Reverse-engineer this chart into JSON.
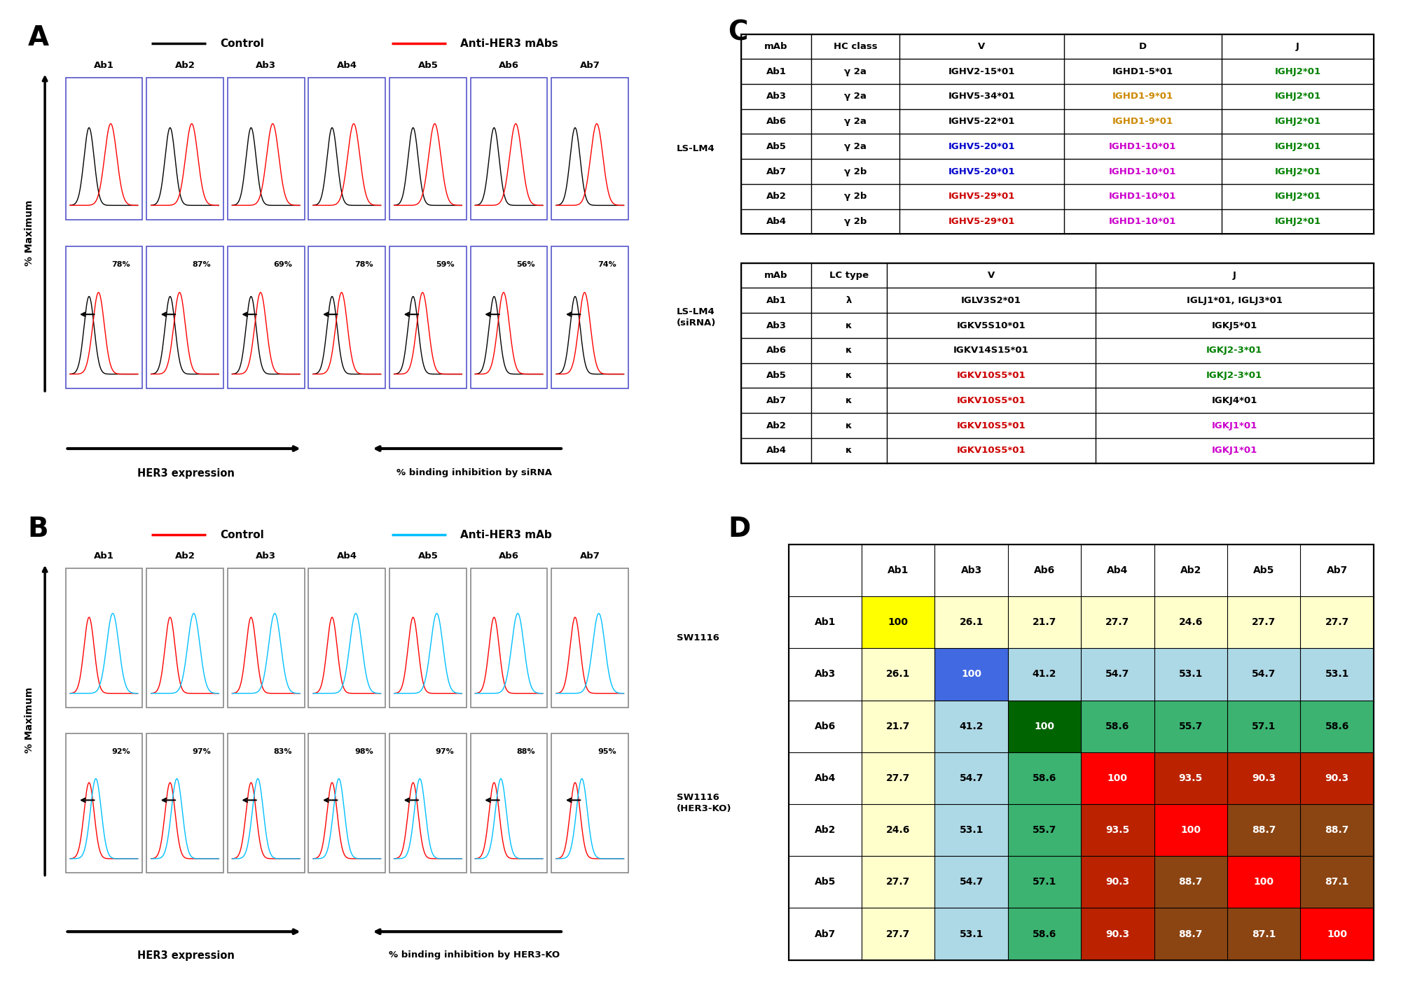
{
  "panel_A_label": "A",
  "panel_B_label": "B",
  "panel_C_label": "C",
  "panel_D_label": "D",
  "ab_labels": [
    "Ab1",
    "Ab2",
    "Ab3",
    "Ab4",
    "Ab5",
    "Ab6",
    "Ab7"
  ],
  "siRNA_pcts": [
    "78%",
    "87%",
    "69%",
    "78%",
    "59%",
    "56%",
    "74%"
  ],
  "KO_pcts": [
    "92%",
    "97%",
    "83%",
    "98%",
    "97%",
    "88%",
    "95%"
  ],
  "panel_A_row1_label": "LS-LM4",
  "panel_A_row2_label": "LS-LM4\n(siRNA)",
  "panel_B_row1_label": "SW1116",
  "panel_B_row2_label": "SW1116\n(HER3-KO)",
  "legend_A_control_color": "black",
  "legend_A_sample_color": "red",
  "legend_B_control_color": "red",
  "legend_B_sample_color": "#00bfff",
  "HC_table_headers": [
    "mAb",
    "HC class",
    "V",
    "D",
    "J"
  ],
  "HC_table_rows": [
    [
      "Ab1",
      "γ 2a",
      "IGHV2-15*01",
      "IGHD1-5*01",
      "IGHJ2*01"
    ],
    [
      "Ab3",
      "γ 2a",
      "IGHV5-34*01",
      "IGHD1-9*01",
      "IGHJ2*01"
    ],
    [
      "Ab6",
      "γ 2a",
      "IGHV5-22*01",
      "IGHD1-9*01",
      "IGHJ2*01"
    ],
    [
      "Ab5",
      "γ 2a",
      "IGHV5-20*01",
      "IGHD1-10*01",
      "IGHJ2*01"
    ],
    [
      "Ab7",
      "γ 2b",
      "IGHV5-20*01",
      "IGHD1-10*01",
      "IGHJ2*01"
    ],
    [
      "Ab2",
      "γ 2b",
      "IGHV5-29*01",
      "IGHD1-10*01",
      "IGHJ2*01"
    ],
    [
      "Ab4",
      "γ 2b",
      "IGHV5-29*01",
      "IGHD1-10*01",
      "IGHJ2*01"
    ]
  ],
  "HC_table_colors": [
    [
      "black",
      "black",
      "black",
      "black",
      "#008000"
    ],
    [
      "black",
      "black",
      "black",
      "#cc8800",
      "#008000"
    ],
    [
      "black",
      "black",
      "black",
      "#cc8800",
      "#008000"
    ],
    [
      "black",
      "black",
      "#0000cc",
      "#cc00cc",
      "#008000"
    ],
    [
      "black",
      "black",
      "#0000cc",
      "#cc00cc",
      "#008000"
    ],
    [
      "black",
      "black",
      "#cc0000",
      "#cc00cc",
      "#008000"
    ],
    [
      "black",
      "black",
      "#cc0000",
      "#cc00cc",
      "#008000"
    ]
  ],
  "LC_table_headers": [
    "mAb",
    "LC type",
    "V",
    "J"
  ],
  "LC_table_rows": [
    [
      "Ab1",
      "λ",
      "IGLV3S2*01",
      "IGLJ1*01, IGLJ3*01"
    ],
    [
      "Ab3",
      "κ",
      "IGKV5S10*01",
      "IGKJ5*01"
    ],
    [
      "Ab6",
      "κ",
      "IGKV14S15*01",
      "IGKJ2-3*01"
    ],
    [
      "Ab5",
      "κ",
      "IGKV10S5*01",
      "IGKJ2-3*01"
    ],
    [
      "Ab7",
      "κ",
      "IGKV10S5*01",
      "IGKJ4*01"
    ],
    [
      "Ab2",
      "κ",
      "IGKV10S5*01",
      "IGKJ1*01"
    ],
    [
      "Ab4",
      "κ",
      "IGKV10S5*01",
      "IGKJ1*01"
    ]
  ],
  "LC_table_colors": [
    [
      "black",
      "black",
      "black",
      "black"
    ],
    [
      "black",
      "black",
      "black",
      "black"
    ],
    [
      "black",
      "black",
      "black",
      "#008000"
    ],
    [
      "black",
      "black",
      "#cc0000",
      "#008000"
    ],
    [
      "black",
      "black",
      "#cc0000",
      "black"
    ],
    [
      "black",
      "black",
      "#cc0000",
      "#cc00cc"
    ],
    [
      "black",
      "black",
      "#cc0000",
      "#cc00cc"
    ]
  ],
  "D_rows": [
    "Ab1",
    "Ab3",
    "Ab6",
    "Ab4",
    "Ab2",
    "Ab5",
    "Ab7"
  ],
  "D_cols": [
    "Ab1",
    "Ab3",
    "Ab6",
    "Ab4",
    "Ab2",
    "Ab5",
    "Ab7"
  ],
  "D_values": [
    [
      100,
      26.1,
      21.7,
      27.7,
      24.6,
      27.7,
      27.7
    ],
    [
      26.1,
      100,
      41.2,
      54.7,
      53.1,
      54.7,
      53.1
    ],
    [
      21.7,
      41.2,
      100,
      58.6,
      55.7,
      57.1,
      58.6
    ],
    [
      27.7,
      54.7,
      58.6,
      100,
      93.5,
      90.3,
      90.3
    ],
    [
      24.6,
      53.1,
      55.7,
      93.5,
      100,
      88.7,
      88.7
    ],
    [
      27.7,
      54.7,
      57.1,
      90.3,
      88.7,
      100,
      87.1
    ],
    [
      27.7,
      53.1,
      58.6,
      90.3,
      88.7,
      87.1,
      100
    ]
  ],
  "D_cell_colors": [
    [
      "#ffff00",
      "#ffffcc",
      "#ffffcc",
      "#ffffcc",
      "#ffffcc",
      "#ffffcc",
      "#ffffcc"
    ],
    [
      "#ffffcc",
      "#4169e1",
      "#add8e6",
      "#add8e6",
      "#add8e6",
      "#add8e6",
      "#add8e6"
    ],
    [
      "#ffffcc",
      "#add8e6",
      "#006400",
      "#3cb371",
      "#3cb371",
      "#3cb371",
      "#3cb371"
    ],
    [
      "#ffffcc",
      "#add8e6",
      "#3cb371",
      "#ff0000",
      "#bb2200",
      "#bb2200",
      "#bb2200"
    ],
    [
      "#ffffcc",
      "#add8e6",
      "#3cb371",
      "#bb2200",
      "#ff0000",
      "#8B4513",
      "#8B4513"
    ],
    [
      "#ffffcc",
      "#add8e6",
      "#3cb371",
      "#bb2200",
      "#8B4513",
      "#ff0000",
      "#8B4513"
    ],
    [
      "#ffffcc",
      "#add8e6",
      "#3cb371",
      "#bb2200",
      "#8B4513",
      "#8B4513",
      "#ff0000"
    ]
  ],
  "D_text_colors": [
    [
      "black",
      "black",
      "black",
      "black",
      "black",
      "black",
      "black"
    ],
    [
      "black",
      "white",
      "black",
      "black",
      "black",
      "black",
      "black"
    ],
    [
      "black",
      "black",
      "white",
      "black",
      "black",
      "black",
      "black"
    ],
    [
      "black",
      "black",
      "black",
      "white",
      "white",
      "white",
      "white"
    ],
    [
      "black",
      "black",
      "black",
      "white",
      "white",
      "white",
      "white"
    ],
    [
      "black",
      "black",
      "black",
      "white",
      "white",
      "white",
      "white"
    ],
    [
      "black",
      "black",
      "black",
      "white",
      "white",
      "white",
      "white"
    ]
  ]
}
